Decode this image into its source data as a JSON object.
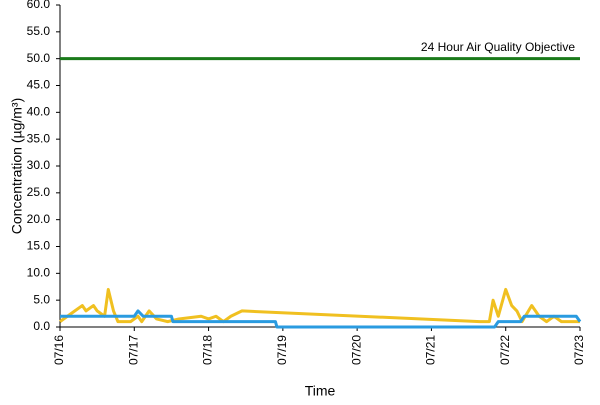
{
  "chart_data": {
    "type": "line",
    "xlabel": "Time",
    "ylabel": "Concentration (µg/m³)",
    "xlim": [
      16,
      23
    ],
    "ylim": [
      0,
      60
    ],
    "xticks": [
      {
        "value": 16,
        "label": "07/16"
      },
      {
        "value": 17,
        "label": "07/17"
      },
      {
        "value": 18,
        "label": "07/18"
      },
      {
        "value": 19,
        "label": "07/19"
      },
      {
        "value": 20,
        "label": "07/20"
      },
      {
        "value": 21,
        "label": "07/21"
      },
      {
        "value": 22,
        "label": "07/22"
      },
      {
        "value": 23,
        "label": "07/23"
      }
    ],
    "yticks": [
      {
        "value": 0,
        "label": "0.0"
      },
      {
        "value": 5,
        "label": "5.0"
      },
      {
        "value": 10,
        "label": "10.0"
      },
      {
        "value": 15,
        "label": "15.0"
      },
      {
        "value": 20,
        "label": "20.0"
      },
      {
        "value": 25,
        "label": "25.0"
      },
      {
        "value": 30,
        "label": "30.0"
      },
      {
        "value": 35,
        "label": "35.0"
      },
      {
        "value": 40,
        "label": "40.0"
      },
      {
        "value": 45,
        "label": "45.0"
      },
      {
        "value": 50,
        "label": "50.0"
      },
      {
        "value": 55,
        "label": "55.0"
      },
      {
        "value": 60,
        "label": "60.0"
      }
    ],
    "grid": false,
    "hlines": [
      {
        "value": 50,
        "label": "24 Hour Air Quality Objective",
        "color": "#1a7a1a"
      }
    ],
    "series": [
      {
        "color": "#f0c020",
        "x": [
          16.0,
          16.1,
          16.2,
          16.3,
          16.35,
          16.45,
          16.5,
          16.6,
          16.65,
          16.72,
          16.78,
          16.95,
          17.05,
          17.1,
          17.2,
          17.3,
          17.45,
          17.6,
          17.9,
          18.0,
          18.1,
          18.2,
          18.3,
          18.45,
          21.65,
          21.78,
          21.83,
          21.9,
          22.0,
          22.08,
          22.15,
          22.22,
          22.35,
          22.45,
          22.55,
          22.65,
          22.75,
          23.0
        ],
        "values": [
          1,
          2,
          3,
          4,
          3,
          4,
          3,
          2,
          7,
          3,
          1,
          1,
          2,
          1,
          3,
          1.5,
          1,
          1.5,
          2,
          1.5,
          2,
          1,
          2,
          3,
          1,
          1,
          5,
          2,
          7,
          4,
          3,
          1,
          4,
          2,
          1,
          2,
          1,
          1
        ]
      },
      {
        "color": "#2a9be0",
        "x": [
          16.0,
          17.0,
          17.05,
          17.12,
          17.5,
          17.52,
          18.0,
          18.9,
          18.92,
          21.85,
          21.9,
          22.2,
          22.25,
          22.95,
          23.0
        ],
        "values": [
          2,
          2,
          3,
          2,
          2,
          1,
          1,
          1,
          0,
          0,
          1,
          1,
          2,
          2,
          1
        ]
      }
    ]
  }
}
